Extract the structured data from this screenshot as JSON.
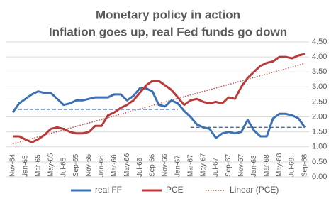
{
  "chart_data": {
    "type": "line",
    "title": "Monetary policy in action",
    "subtitle": "Inflation goes up, real Fed funds go down",
    "categories": [
      "Nov-64",
      null,
      "Jan-65",
      null,
      "Mar-65",
      null,
      "May-65",
      null,
      "Jul-65",
      null,
      "Sep-65",
      null,
      "Nov-65",
      null,
      "Jan-66",
      null,
      "Mar-66",
      null,
      "May-66",
      null,
      "Jul-66",
      null,
      "Sep-66",
      null,
      "Nov-66",
      null,
      "Jan-67",
      null,
      "Mar-67",
      null,
      "May-67",
      null,
      "Jul-67",
      null,
      "Sep-67",
      null,
      "Nov-67",
      null,
      "Jan-68",
      null,
      "Mar-68",
      null,
      "May-68",
      null,
      "Jul-68",
      null,
      "Sep-68"
    ],
    "series": [
      {
        "name": "real FF",
        "color": "#3b70b3",
        "values": [
          2.15,
          2.45,
          2.6,
          2.75,
          2.85,
          2.8,
          2.8,
          2.6,
          2.4,
          2.45,
          2.55,
          2.55,
          2.6,
          2.65,
          2.65,
          2.65,
          2.75,
          2.75,
          2.55,
          2.7,
          2.95,
          2.95,
          2.85,
          2.4,
          2.35,
          2.55,
          2.45,
          2.2,
          2.0,
          1.75,
          1.65,
          1.6,
          1.3,
          1.45,
          1.5,
          1.45,
          1.5,
          1.9,
          1.55,
          1.35,
          1.35,
          1.95,
          2.1,
          2.1,
          2.05,
          1.95,
          1.65
        ]
      },
      {
        "name": "PCE",
        "color": "#b83a3a",
        "values": [
          1.35,
          1.35,
          1.25,
          1.15,
          1.25,
          1.4,
          1.6,
          1.65,
          1.6,
          1.5,
          1.45,
          1.45,
          1.5,
          1.7,
          1.7,
          2.05,
          2.15,
          2.3,
          2.4,
          2.55,
          2.8,
          3.05,
          3.2,
          3.2,
          3.05,
          2.9,
          2.65,
          2.4,
          2.55,
          2.6,
          2.5,
          2.45,
          2.5,
          2.45,
          2.65,
          2.6,
          3.0,
          3.3,
          3.5,
          3.7,
          3.8,
          3.85,
          4.0,
          4.0,
          3.95,
          4.05,
          4.1
        ]
      }
    ],
    "trendline": {
      "name": "Linear (PCE)",
      "color": "#c0504d",
      "start": 1.1,
      "end": 3.78
    },
    "reference_lines": [
      {
        "value": 2.25,
        "from": "Nov-64",
        "to": "Jan-67",
        "color": "#3b70b3"
      },
      {
        "value": 1.65,
        "from": "Mar-67",
        "to": "Sep-68",
        "color": "#3b70b3"
      }
    ],
    "ylim": [
      0,
      4.5
    ],
    "yticks": [
      {
        "value": 0,
        "label": "0.00"
      },
      {
        "value": 0.5,
        "label": "0.50"
      },
      {
        "value": 1,
        "label": "1.00"
      },
      {
        "value": 1.5,
        "label": "1.50"
      },
      {
        "value": 2,
        "label": "2.00"
      },
      {
        "value": 2.5,
        "label": "2.50"
      },
      {
        "value": 3,
        "label": "3.00"
      },
      {
        "value": 3.5,
        "label": "3.50"
      },
      {
        "value": 4,
        "label": "4.00"
      },
      {
        "value": 4.5,
        "label": "4.50"
      }
    ],
    "grid": true
  }
}
